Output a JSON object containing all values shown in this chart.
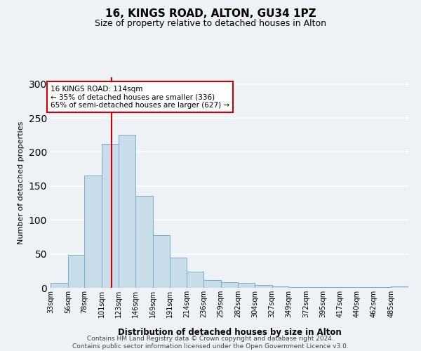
{
  "title1": "16, KINGS ROAD, ALTON, GU34 1PZ",
  "title2": "Size of property relative to detached houses in Alton",
  "xlabel": "Distribution of detached houses by size in Alton",
  "ylabel": "Number of detached properties",
  "footer1": "Contains HM Land Registry data © Crown copyright and database right 2024.",
  "footer2": "Contains public sector information licensed under the Open Government Licence v3.0.",
  "annotation_line1": "16 KINGS ROAD: 114sqm",
  "annotation_line2": "← 35% of detached houses are smaller (336)",
  "annotation_line3": "65% of semi-detached houses are larger (627) →",
  "bar_color": "#c9dcea",
  "bar_edge_color": "#7aaec8",
  "ref_line_color": "#cc0000",
  "ref_line_x": 114,
  "categories": [
    "33sqm",
    "56sqm",
    "78sqm",
    "101sqm",
    "123sqm",
    "146sqm",
    "169sqm",
    "191sqm",
    "214sqm",
    "236sqm",
    "259sqm",
    "282sqm",
    "304sqm",
    "327sqm",
    "349sqm",
    "372sqm",
    "395sqm",
    "417sqm",
    "440sqm",
    "462sqm",
    "485sqm"
  ],
  "bin_edges": [
    33,
    56,
    78,
    101,
    123,
    146,
    169,
    191,
    214,
    236,
    259,
    282,
    304,
    327,
    349,
    372,
    395,
    417,
    440,
    462,
    485,
    508
  ],
  "values": [
    7,
    49,
    165,
    212,
    225,
    135,
    78,
    44,
    24,
    11,
    8,
    7,
    4,
    2,
    1,
    1,
    1,
    1,
    1,
    1,
    2
  ],
  "ylim": [
    0,
    310
  ],
  "yticks": [
    0,
    50,
    100,
    150,
    200,
    250,
    300
  ],
  "background_color": "#eef2f7",
  "grid_color": "#ffffff",
  "annotation_box_color": "#ffffff",
  "annotation_box_edge": "#cc0000"
}
